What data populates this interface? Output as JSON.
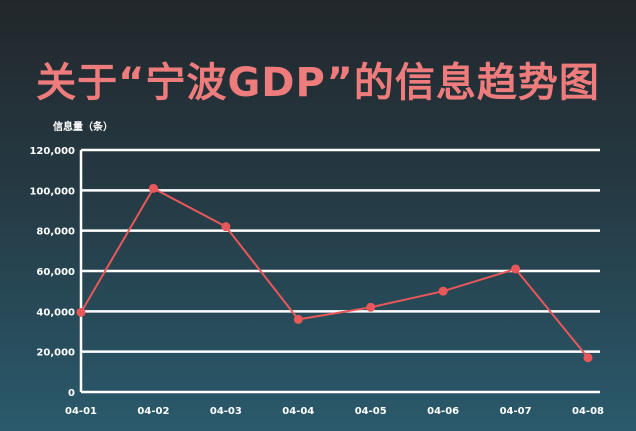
{
  "chart_data": {
    "type": "line",
    "title": "关于“宁波GDP”的信息趋势图",
    "ylabel": "信息量（条）",
    "xlabel": "",
    "categories": [
      "04-01",
      "04-02",
      "04-03",
      "04-04",
      "04-05",
      "04-06",
      "04-07",
      "04-08"
    ],
    "values": [
      39500,
      101000,
      82000,
      36000,
      42000,
      50000,
      61000,
      17000
    ],
    "ylim": [
      0,
      120000
    ],
    "yticks": [
      0,
      20000,
      40000,
      60000,
      80000,
      100000,
      120000
    ],
    "ytick_labels": [
      "0",
      "20,000",
      "40,000",
      "60,000",
      "80,000",
      "100,000",
      "120,000"
    ],
    "grid": true,
    "colors": {
      "line": "#e8585a",
      "title": "#ef7c7c",
      "grid": "#ffffff"
    }
  }
}
